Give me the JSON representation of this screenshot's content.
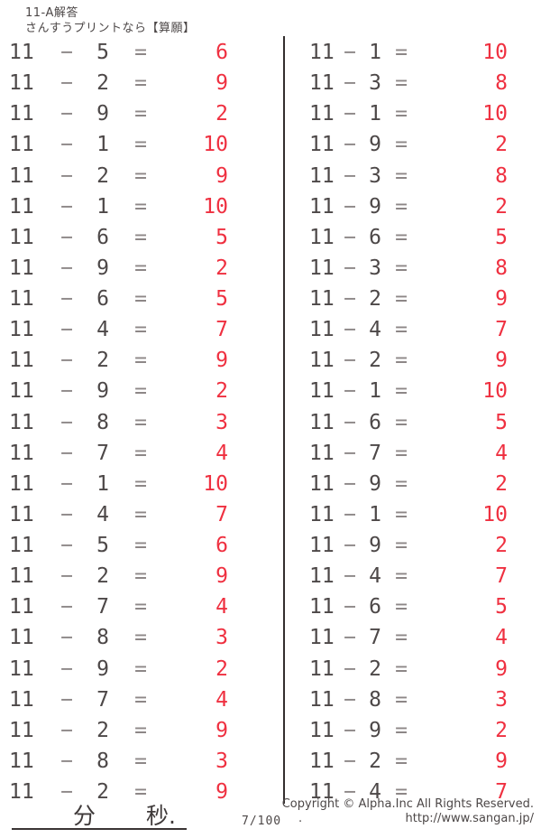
{
  "header": {
    "title": "11-A解答",
    "subtitle": "さんすうプリントなら【算願】"
  },
  "problem_format": {
    "minuend": "11",
    "minus": "−",
    "equals": "="
  },
  "columns": {
    "left": [
      {
        "s": "5",
        "a": "6"
      },
      {
        "s": "2",
        "a": "9"
      },
      {
        "s": "9",
        "a": "2"
      },
      {
        "s": "1",
        "a": "10"
      },
      {
        "s": "2",
        "a": "9"
      },
      {
        "s": "1",
        "a": "10"
      },
      {
        "s": "6",
        "a": "5"
      },
      {
        "s": "9",
        "a": "2"
      },
      {
        "s": "6",
        "a": "5"
      },
      {
        "s": "4",
        "a": "7"
      },
      {
        "s": "2",
        "a": "9"
      },
      {
        "s": "9",
        "a": "2"
      },
      {
        "s": "8",
        "a": "3"
      },
      {
        "s": "7",
        "a": "4"
      },
      {
        "s": "1",
        "a": "10"
      },
      {
        "s": "4",
        "a": "7"
      },
      {
        "s": "5",
        "a": "6"
      },
      {
        "s": "2",
        "a": "9"
      },
      {
        "s": "7",
        "a": "4"
      },
      {
        "s": "8",
        "a": "3"
      },
      {
        "s": "9",
        "a": "2"
      },
      {
        "s": "7",
        "a": "4"
      },
      {
        "s": "2",
        "a": "9"
      },
      {
        "s": "8",
        "a": "3"
      },
      {
        "s": "2",
        "a": "9"
      }
    ],
    "right": [
      {
        "s": "1",
        "a": "10"
      },
      {
        "s": "3",
        "a": "8"
      },
      {
        "s": "1",
        "a": "10"
      },
      {
        "s": "9",
        "a": "2"
      },
      {
        "s": "3",
        "a": "8"
      },
      {
        "s": "9",
        "a": "2"
      },
      {
        "s": "6",
        "a": "5"
      },
      {
        "s": "3",
        "a": "8"
      },
      {
        "s": "2",
        "a": "9"
      },
      {
        "s": "4",
        "a": "7"
      },
      {
        "s": "2",
        "a": "9"
      },
      {
        "s": "1",
        "a": "10"
      },
      {
        "s": "6",
        "a": "5"
      },
      {
        "s": "7",
        "a": "4"
      },
      {
        "s": "9",
        "a": "2"
      },
      {
        "s": "1",
        "a": "10"
      },
      {
        "s": "9",
        "a": "2"
      },
      {
        "s": "4",
        "a": "7"
      },
      {
        "s": "6",
        "a": "5"
      },
      {
        "s": "7",
        "a": "4"
      },
      {
        "s": "2",
        "a": "9"
      },
      {
        "s": "8",
        "a": "3"
      },
      {
        "s": "9",
        "a": "2"
      },
      {
        "s": "2",
        "a": "9"
      },
      {
        "s": "4",
        "a": "7"
      }
    ]
  },
  "footer": {
    "minutes_label": "分",
    "seconds_label": "秒.",
    "page_number": "7/100",
    "dot": ".",
    "copyright": "Copyright ©  Alpha.Inc All Rights Reserved.",
    "url": "http://www.sangan.jp/"
  },
  "colors": {
    "ink": "#4d4848",
    "operator": "#8d8787",
    "answer_red": "#ef3040",
    "divider": "#332e2e"
  }
}
